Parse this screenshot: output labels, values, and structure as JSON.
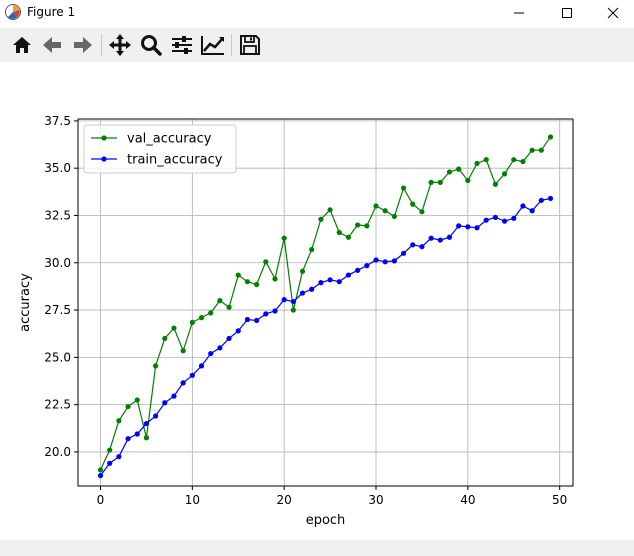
{
  "window": {
    "title": "Figure 1",
    "minimize_icon": "minimize-icon",
    "maximize_icon": "maximize-icon",
    "close_icon": "close-icon"
  },
  "toolbar": {
    "icons": [
      "home-icon",
      "back-arrow-icon",
      "forward-arrow-icon",
      "pan-icon",
      "zoom-icon",
      "subplots-config-icon",
      "edit-axes-icon",
      "save-icon"
    ]
  },
  "colors": {
    "val_accuracy": "#008000",
    "train_accuracy": "#0000ff",
    "grid": "#b0b0b0"
  },
  "chart_data": {
    "type": "line",
    "xlabel": "epoch",
    "ylabel": "accuracy",
    "xlim": [
      -2.45,
      51.45
    ],
    "ylim": [
      18.2,
      37.6
    ],
    "xticks": [
      0,
      10,
      20,
      30,
      40,
      50
    ],
    "xtick_labels": [
      "0",
      "10",
      "20",
      "30",
      "40",
      "50"
    ],
    "yticks": [
      20.0,
      22.5,
      25.0,
      27.5,
      30.0,
      32.5,
      35.0,
      37.5
    ],
    "ytick_labels": [
      "20.0",
      "22.5",
      "25.0",
      "27.5",
      "30.0",
      "32.5",
      "35.0",
      "37.5"
    ],
    "grid": true,
    "legend_position": "top-left",
    "x": [
      0,
      1,
      2,
      3,
      4,
      5,
      6,
      7,
      8,
      9,
      10,
      11,
      12,
      13,
      14,
      15,
      16,
      17,
      18,
      19,
      20,
      21,
      22,
      23,
      24,
      25,
      26,
      27,
      28,
      29,
      30,
      31,
      32,
      33,
      34,
      35,
      36,
      37,
      38,
      39,
      40,
      41,
      42,
      43,
      44,
      45,
      46,
      47,
      48,
      49
    ],
    "series": [
      {
        "name": "val_accuracy",
        "values": [
          19.05,
          20.1,
          21.65,
          22.4,
          22.75,
          20.75,
          24.55,
          26.0,
          26.55,
          25.35,
          26.85,
          27.1,
          27.35,
          28.0,
          27.65,
          29.35,
          29.0,
          28.85,
          30.05,
          29.15,
          31.3,
          27.5,
          29.55,
          30.7,
          32.3,
          32.8,
          31.6,
          31.35,
          32.0,
          31.95,
          33.0,
          32.75,
          32.45,
          33.95,
          33.1,
          32.7,
          34.25,
          34.25,
          34.8,
          34.95,
          34.35,
          35.25,
          35.45,
          34.15,
          34.7,
          35.45,
          35.35,
          35.95,
          35.95,
          36.65
        ]
      },
      {
        "name": "train_accuracy",
        "values": [
          18.75,
          19.4,
          19.75,
          20.7,
          20.95,
          21.5,
          21.9,
          22.6,
          22.95,
          23.65,
          24.05,
          24.55,
          25.2,
          25.5,
          26.0,
          26.4,
          27.0,
          26.95,
          27.3,
          27.45,
          28.05,
          27.95,
          28.4,
          28.6,
          28.95,
          29.1,
          29.0,
          29.35,
          29.6,
          29.85,
          30.15,
          30.05,
          30.1,
          30.5,
          30.95,
          30.85,
          31.3,
          31.2,
          31.35,
          31.95,
          31.9,
          31.85,
          32.25,
          32.4,
          32.2,
          32.35,
          33.0,
          32.75,
          33.3,
          33.4
        ]
      }
    ]
  }
}
